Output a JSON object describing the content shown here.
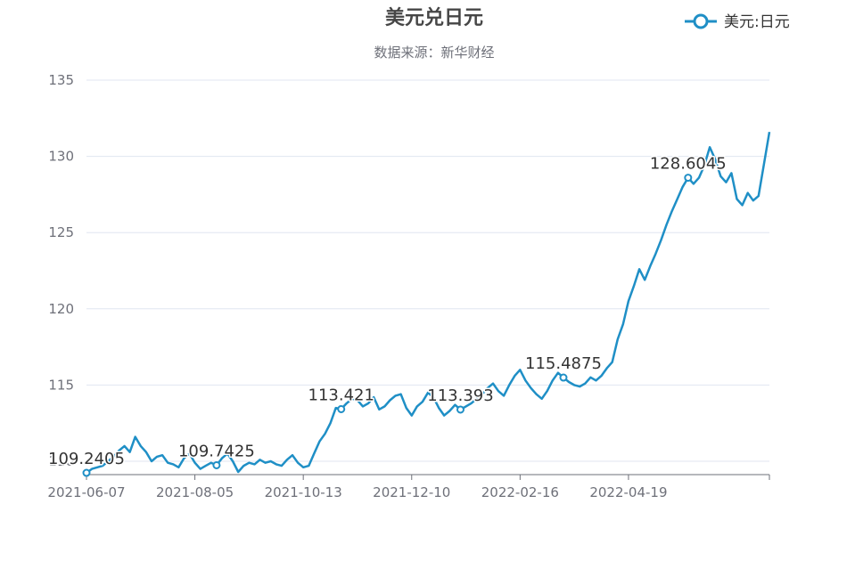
{
  "chart_data": {
    "type": "line",
    "title": "美元兑日元",
    "subtitle": "数据来源：新华财经",
    "legend": "top-right",
    "grid": true,
    "xlabel": "",
    "ylabel": "",
    "ylim": [
      109,
      135
    ],
    "yticks": [
      110,
      115,
      120,
      125,
      130,
      135
    ],
    "xticks": [
      "2021-06-07",
      "2021-08-05",
      "2021-10-13",
      "2021-12-10",
      "2022-02-16",
      "2022-04-19"
    ],
    "series": [
      {
        "name": "美元:日元",
        "color": "#1f8fc6",
        "values": [
          109.24,
          109.5,
          109.6,
          109.7,
          110.0,
          110.3,
          110.7,
          111.0,
          110.6,
          111.6,
          111.0,
          110.6,
          110.0,
          110.3,
          110.4,
          109.9,
          109.8,
          109.6,
          110.2,
          110.5,
          109.9,
          109.5,
          109.7,
          109.9,
          109.74,
          110.2,
          110.5,
          110.0,
          109.3,
          109.7,
          109.9,
          109.8,
          110.1,
          109.9,
          110.0,
          109.8,
          109.7,
          110.1,
          110.4,
          109.9,
          109.6,
          109.7,
          110.5,
          111.3,
          111.8,
          112.5,
          113.5,
          113.42,
          113.8,
          114.1,
          114.0,
          113.6,
          113.8,
          114.2,
          113.4,
          113.6,
          114.0,
          114.3,
          114.4,
          113.5,
          113.0,
          113.6,
          113.9,
          114.5,
          114.2,
          113.5,
          113.0,
          113.3,
          113.7,
          113.39,
          113.6,
          113.8,
          114.1,
          114.4,
          114.8,
          115.1,
          114.6,
          114.3,
          115.0,
          115.6,
          116.0,
          115.3,
          114.8,
          114.4,
          114.1,
          114.6,
          115.3,
          115.8,
          115.49,
          115.2,
          115.0,
          114.9,
          115.1,
          115.5,
          115.3,
          115.6,
          116.1,
          116.5,
          118.0,
          119.0,
          120.5,
          121.5,
          122.6,
          121.9,
          122.8,
          123.6,
          124.5,
          125.5,
          126.4,
          127.2,
          128.0,
          128.6,
          128.2,
          128.6,
          129.4,
          130.6,
          129.8,
          128.7,
          128.3,
          128.9,
          127.2,
          126.8,
          127.6,
          127.1,
          127.4,
          129.5,
          131.6
        ]
      }
    ],
    "annotations": [
      {
        "index": 0,
        "label": "109.2405"
      },
      {
        "index": 24,
        "label": "109.7425"
      },
      {
        "index": 47,
        "label": "113.421"
      },
      {
        "index": 69,
        "label": "113.393"
      },
      {
        "index": 88,
        "label": "115.4875"
      },
      {
        "index": 111,
        "label": "128.6045"
      }
    ]
  }
}
